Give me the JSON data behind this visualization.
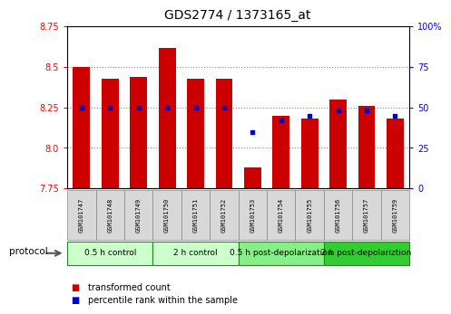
{
  "title": "GDS2774 / 1373165_at",
  "samples": [
    "GSM101747",
    "GSM101748",
    "GSM101749",
    "GSM101750",
    "GSM101751",
    "GSM101752",
    "GSM101753",
    "GSM101754",
    "GSM101755",
    "GSM101756",
    "GSM101757",
    "GSM101759"
  ],
  "bar_values": [
    8.5,
    8.43,
    8.44,
    8.62,
    8.43,
    8.43,
    7.88,
    8.2,
    8.18,
    8.3,
    8.26,
    8.18
  ],
  "percentile_values": [
    50,
    50,
    50,
    50,
    50,
    50,
    35,
    42,
    45,
    48,
    48,
    45
  ],
  "bar_bottom": 7.75,
  "ylim_left": [
    7.75,
    8.75
  ],
  "ylim_right": [
    0,
    100
  ],
  "yticks_left": [
    7.75,
    8.0,
    8.25,
    8.5,
    8.75
  ],
  "yticks_right": [
    0,
    25,
    50,
    75,
    100
  ],
  "bar_color": "#cc0000",
  "dot_color": "#0000cc",
  "grid_color": "#888888",
  "bg_color": "#ffffff",
  "protocol_groups": [
    {
      "label": "0.5 h control",
      "start": 0,
      "end": 3,
      "color": "#ccffcc"
    },
    {
      "label": "2 h control",
      "start": 3,
      "end": 6,
      "color": "#ccffcc"
    },
    {
      "label": "0.5 h post-depolarization",
      "start": 6,
      "end": 9,
      "color": "#88ee88"
    },
    {
      "label": "2 h post-depolariztion",
      "start": 9,
      "end": 12,
      "color": "#33cc33"
    }
  ],
  "protocol_label": "protocol",
  "legend_bar_label": "transformed count",
  "legend_dot_label": "percentile rank within the sample",
  "title_fontsize": 10,
  "tick_fontsize": 7,
  "sample_fontsize": 5,
  "proto_fontsize": 6.5,
  "legend_fontsize": 7
}
